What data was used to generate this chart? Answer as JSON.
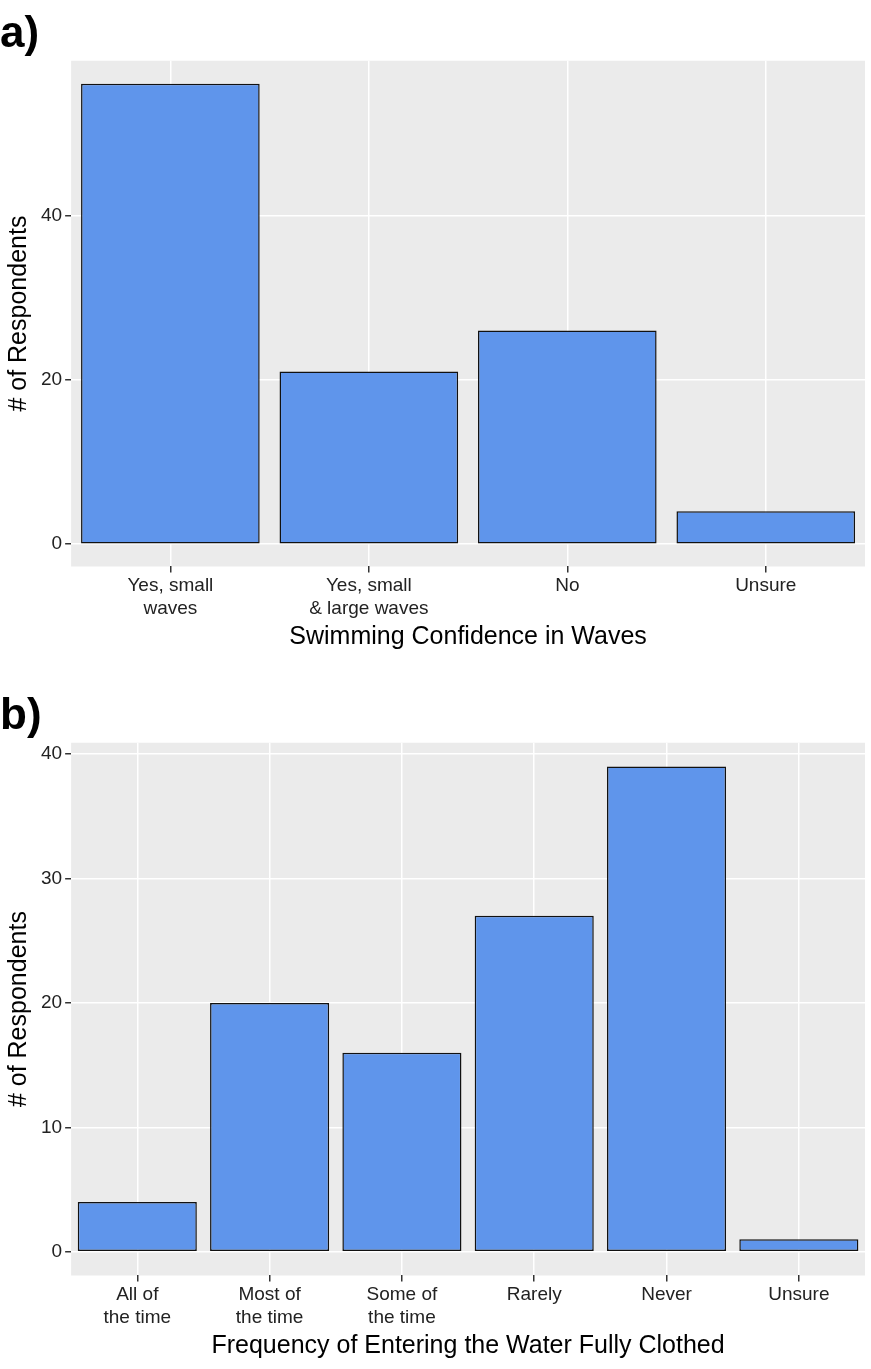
{
  "chart_data": [
    {
      "type": "bar",
      "title": "a)",
      "xlabel": "Swimming Confidence in Waves",
      "ylabel": "# of Respondents",
      "categories": [
        "Yes, small\nwaves",
        "Yes, small\n& large waves",
        "No",
        "Unsure"
      ],
      "values": [
        56,
        21,
        26,
        4
      ],
      "color": "#5f95eb",
      "ylim": [
        -2.7,
        58.8
      ],
      "yticks": [
        0,
        20,
        40
      ],
      "grid": true
    },
    {
      "type": "bar",
      "title": "b)",
      "xlabel": "Frequency of Entering the Water Fully Clothed",
      "ylabel": "# of Respondents",
      "categories": [
        "All of\nthe time",
        "Most of\nthe time",
        "Some of\nthe time",
        "Rarely",
        "Never",
        "Unsure"
      ],
      "values": [
        4,
        20,
        16,
        27,
        39,
        1
      ],
      "color": "#5f95eb",
      "ylim": [
        -1.9,
        40.9
      ],
      "yticks": [
        0,
        10,
        20,
        30,
        40
      ],
      "grid": true
    }
  ]
}
